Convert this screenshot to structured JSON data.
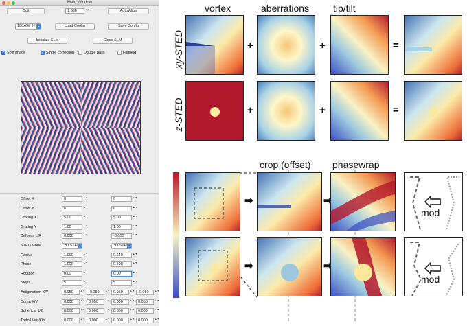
{
  "window": {
    "title": "Main Window",
    "quit_label": "Quit",
    "value_field": "1.680",
    "auto_align_label": "Auto Align",
    "objective_select": "100xOil_N",
    "load_config_label": "Load Config",
    "save_config_label": "Save Config",
    "init_slm_label": "Initialize SLM",
    "close_slm_label": "Close SLM",
    "checkboxes": [
      {
        "label": "Split image",
        "checked": true
      },
      {
        "label": "Single correction",
        "checked": true
      },
      {
        "label": "Double pass",
        "checked": false
      },
      {
        "label": "Flatfield",
        "checked": false
      }
    ],
    "params": [
      {
        "label": "Offset X",
        "a": "0",
        "b": "0"
      },
      {
        "label": "Offset Y",
        "a": "0",
        "b": "0"
      },
      {
        "label": "Grating X",
        "a": "5.00",
        "b": "5.00"
      },
      {
        "label": "Grating Y",
        "a": "1.00",
        "b": "1.00"
      },
      {
        "label": "Defocus L/R",
        "a": "0.000",
        "b": "-0.050"
      },
      {
        "label": "STED Mode",
        "a": "2D STED",
        "b": "3D STED"
      },
      {
        "label": "Radius",
        "a": "1.000",
        "b": "0.640"
      },
      {
        "label": "Phase",
        "a": "1.000",
        "b": "0.500"
      },
      {
        "label": "Rotation",
        "a": "0.00",
        "b": "0.00"
      },
      {
        "label": "Steps",
        "a": "5",
        "b": "5"
      }
    ],
    "params4": [
      {
        "label": "Astigmatism X/Y",
        "v": [
          "0.050",
          "-0.050",
          "0.050",
          "-0.050"
        ]
      },
      {
        "label": "Coma X/Y",
        "v": [
          "0.000",
          "0.050",
          "0.000",
          "0.050"
        ]
      },
      {
        "label": "Spherical 1/2",
        "v": [
          "0.000",
          "0.000",
          "0.000",
          "0.000"
        ]
      },
      {
        "label": "Trefoil Vert/Obl",
        "v": [
          "0.000",
          "0.000",
          "0.000",
          "0.000"
        ]
      }
    ]
  },
  "figure": {
    "columns": [
      "vortex",
      "aberrations",
      "tip/tilt"
    ],
    "rows": [
      "xy-STED",
      "z-STED"
    ],
    "plus": "+",
    "equals": "=",
    "lower_headers": [
      "crop (offset)",
      "phasewrap"
    ],
    "mod_label": "mod"
  }
}
